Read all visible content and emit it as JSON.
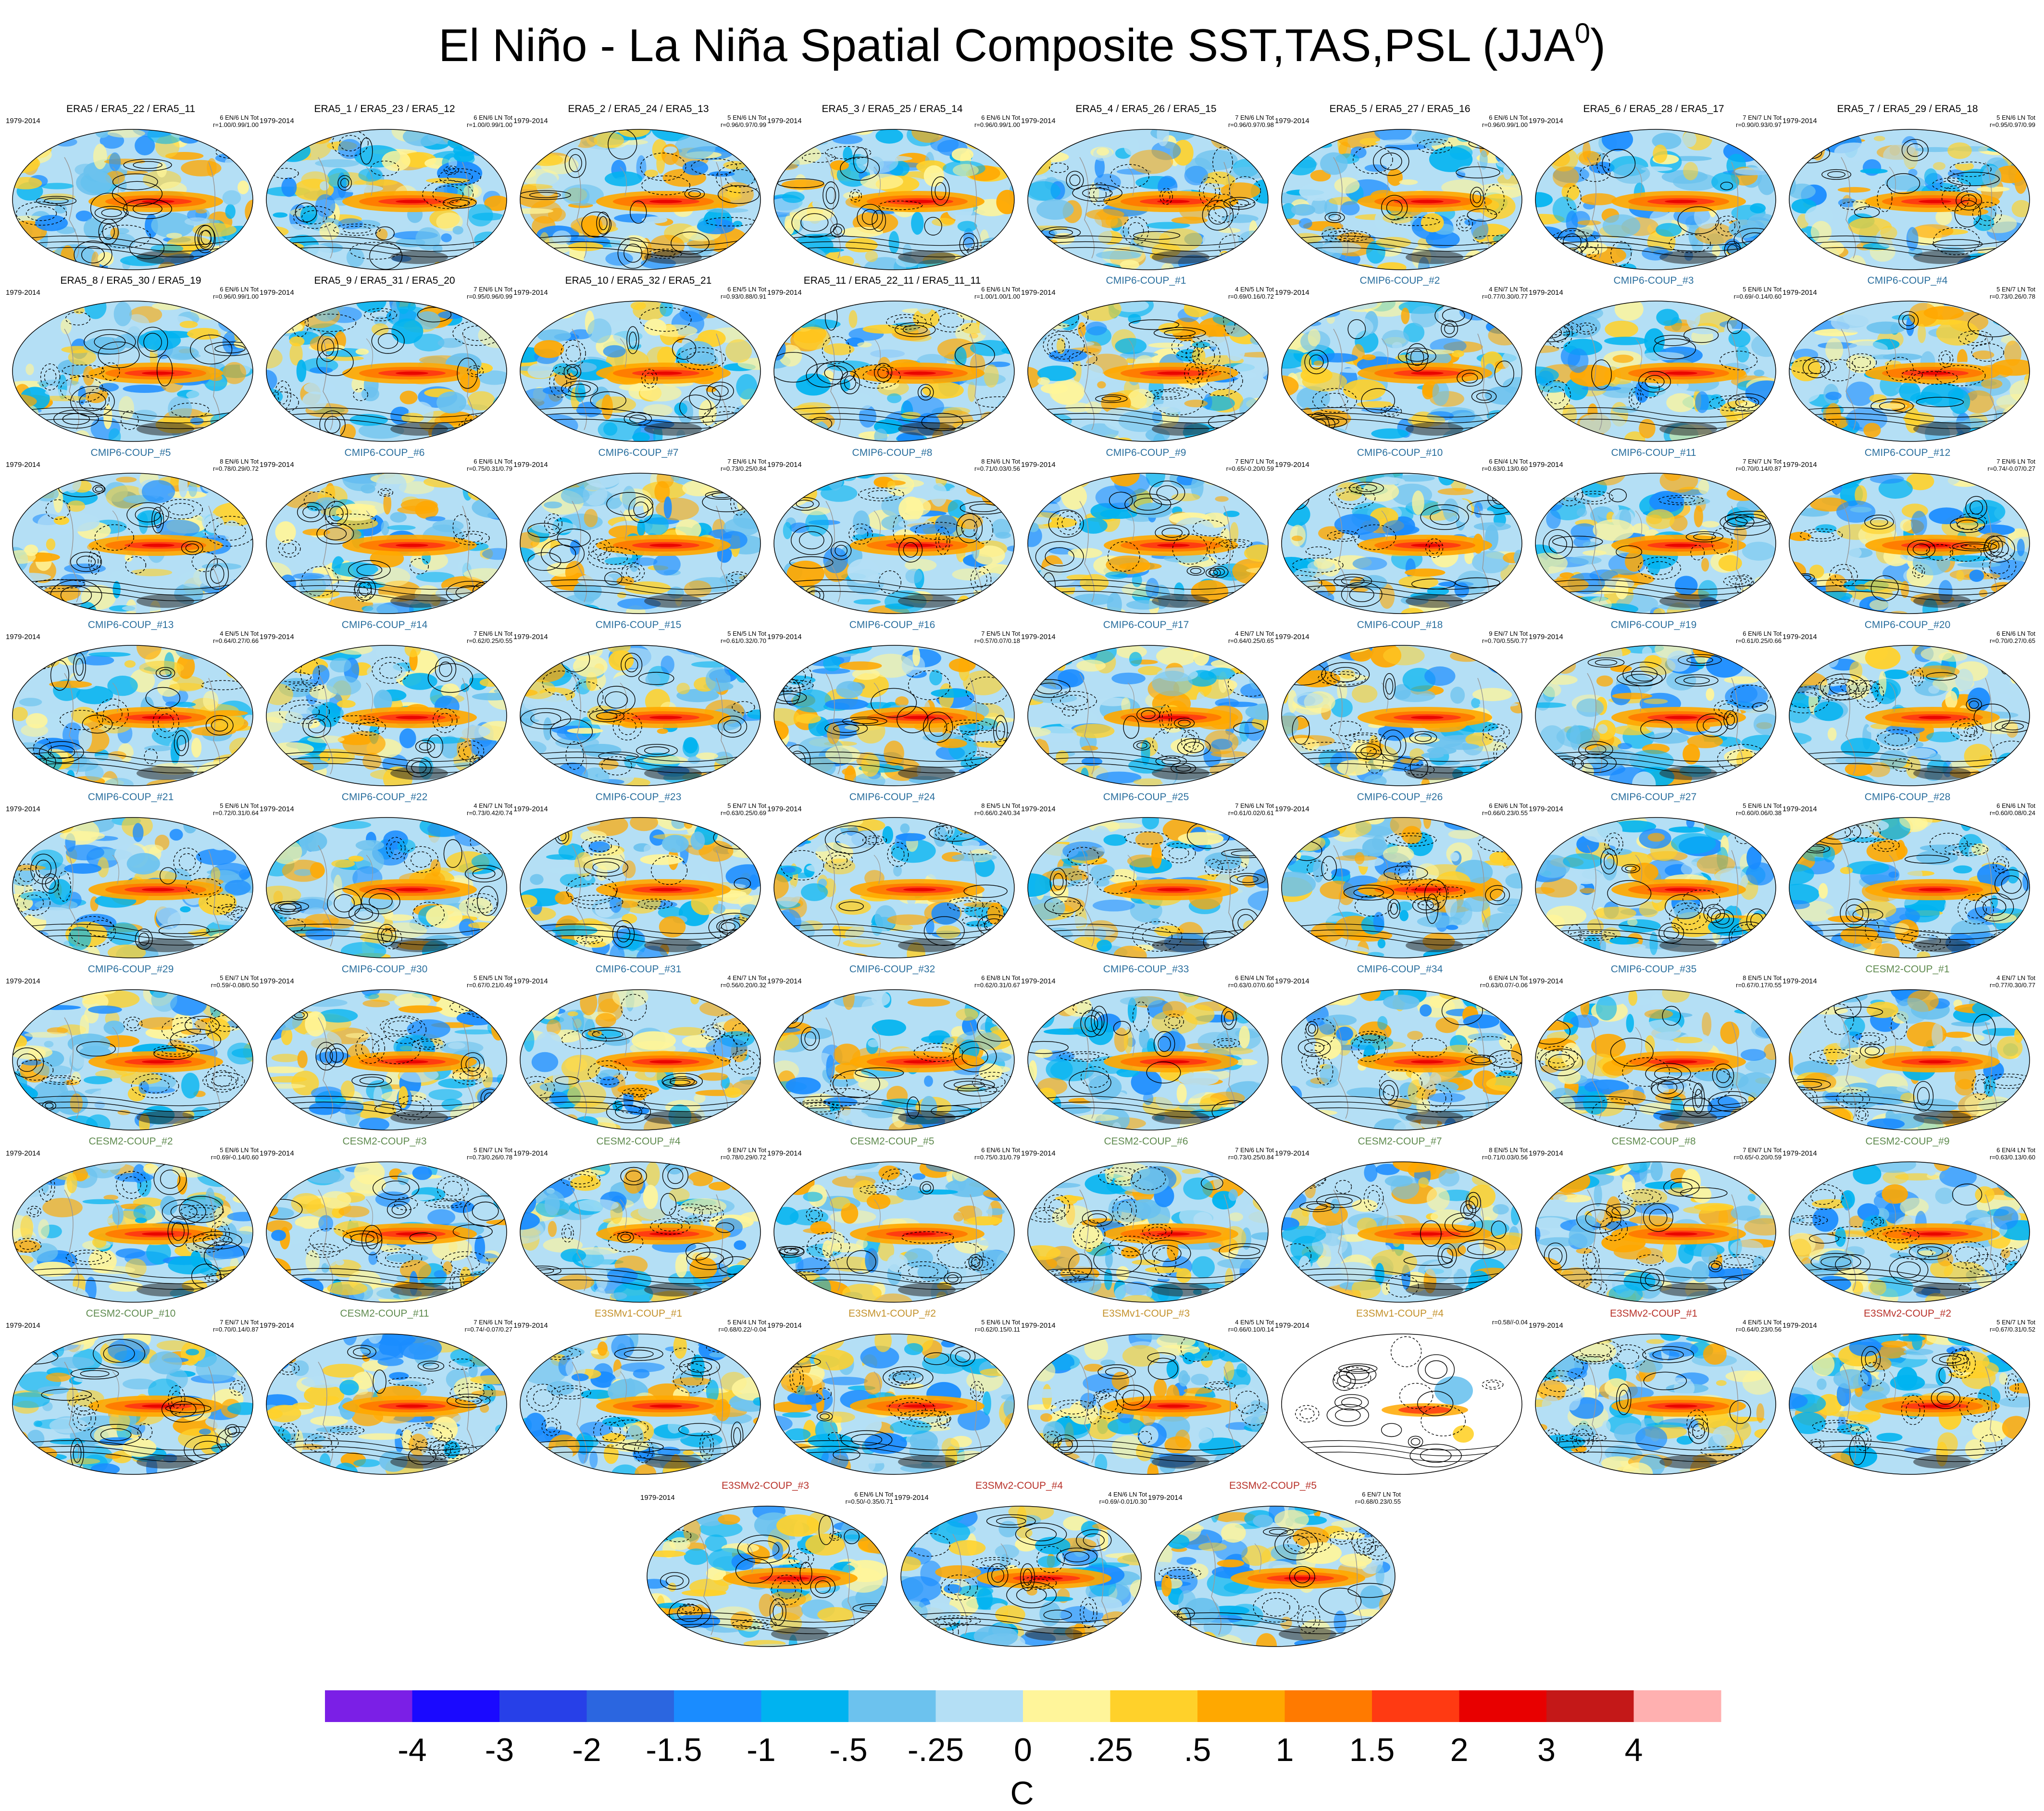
{
  "title_main": "El Niño - La Niña Spatial Composite SST,TAS,PSL (JJA",
  "title_sup": "0",
  "title_close": ")",
  "period": "1979-2014",
  "colors": {
    "ref_title": "#000000",
    "cmip6_title": "#2a6f9e",
    "cesm2_title": "#5f8b4f",
    "e3smv1_title": "#c4922c",
    "e3smv2_title": "#b8322a",
    "coastline": "#999999",
    "contour": "#000000"
  },
  "colorbar": {
    "colors": [
      "#7b1fe6",
      "#1a09ff",
      "#2740e8",
      "#2b66e0",
      "#1a8cff",
      "#00b3f0",
      "#6cc2ee",
      "#b4dff5",
      "#fff59a",
      "#ffd12a",
      "#ffa800",
      "#ff7a00",
      "#ff3a12",
      "#e80000",
      "#c41818",
      "#ffb0b0"
    ],
    "labels": [
      "-4",
      "-3",
      "-2",
      "-1.5",
      "-1",
      "-.5",
      "-.25",
      "0",
      ".25",
      ".5",
      "1",
      "1.5",
      "2",
      "3",
      "4"
    ],
    "units": "C"
  },
  "panels": [
    {
      "title": "ERA5 / ERA5_22 / ERA5_11",
      "group": "ref",
      "stats": [
        "6 EN/6 LN Tot",
        "r=1.00/0.99/1.00"
      ]
    },
    {
      "title": "ERA5_1 / ERA5_23 / ERA5_12",
      "group": "ref",
      "stats": [
        "6 EN/6 LN Tot",
        "r=1.00/0.99/1.00"
      ]
    },
    {
      "title": "ERA5_2 / ERA5_24 / ERA5_13",
      "group": "ref",
      "stats": [
        "5 EN/6 LN Tot",
        "r=0.96/0.97/0.99"
      ]
    },
    {
      "title": "ERA5_3 / ERA5_25 / ERA5_14",
      "group": "ref",
      "stats": [
        "6 EN/6 LN Tot",
        "r=0.96/0.99/1.00"
      ]
    },
    {
      "title": "ERA5_4 / ERA5_26 / ERA5_15",
      "group": "ref",
      "stats": [
        "7 EN/6 LN Tot",
        "r=0.96/0.97/0.98"
      ]
    },
    {
      "title": "ERA5_5 / ERA5_27 / ERA5_16",
      "group": "ref",
      "stats": [
        "6 EN/6 LN Tot",
        "r=0.96/0.99/1.00"
      ]
    },
    {
      "title": "ERA5_6 / ERA5_28 / ERA5_17",
      "group": "ref",
      "stats": [
        "7 EN/7 LN Tot",
        "r=0.90/0.93/0.97"
      ]
    },
    {
      "title": "ERA5_7 / ERA5_29 / ERA5_18",
      "group": "ref",
      "stats": [
        "5 EN/6 LN Tot",
        "r=0.95/0.97/0.99"
      ]
    },
    {
      "title": "ERA5_8 / ERA5_30 / ERA5_19",
      "group": "ref",
      "stats": [
        "6 EN/6 LN Tot",
        "r=0.96/0.99/1.00"
      ]
    },
    {
      "title": "ERA5_9 / ERA5_31 / ERA5_20",
      "group": "ref",
      "stats": [
        "7 EN/6 LN Tot",
        "r=0.95/0.96/0.99"
      ]
    },
    {
      "title": "ERA5_10 / ERA5_32 / ERA5_21",
      "group": "ref",
      "stats": [
        "6 EN/5 LN Tot",
        "r=0.93/0.88/0.91"
      ]
    },
    {
      "title": "ERA5_11 / ERA5_22_11 / ERA5_11_11",
      "group": "ref",
      "stats": [
        "6 EN/6 LN Tot",
        "r=1.00/1.00/1.00"
      ]
    },
    {
      "title": "CMIP6-COUP_#1",
      "group": "cmip6",
      "stats": [
        "4 EN/5 LN Tot",
        "r=0.69/0.16/0.72"
      ]
    },
    {
      "title": "CMIP6-COUP_#2",
      "group": "cmip6",
      "stats": [
        "4 EN/7 LN Tot",
        "r=0.77/0.30/0.77"
      ]
    },
    {
      "title": "CMIP6-COUP_#3",
      "group": "cmip6",
      "stats": [
        "5 EN/6 LN Tot",
        "r=0.69/-0.14/0.60"
      ]
    },
    {
      "title": "CMIP6-COUP_#4",
      "group": "cmip6",
      "stats": [
        "5 EN/7 LN Tot",
        "r=0.73/0.26/0.78"
      ]
    },
    {
      "title": "CMIP6-COUP_#5",
      "group": "cmip6",
      "stats": [
        "8 EN/6 LN Tot",
        "r=0.78/0.29/0.72"
      ]
    },
    {
      "title": "CMIP6-COUP_#6",
      "group": "cmip6",
      "stats": [
        "6 EN/6 LN Tot",
        "r=0.75/0.31/0.79"
      ]
    },
    {
      "title": "CMIP6-COUP_#7",
      "group": "cmip6",
      "stats": [
        "7 EN/6 LN Tot",
        "r=0.73/0.25/0.84"
      ]
    },
    {
      "title": "CMIP6-COUP_#8",
      "group": "cmip6",
      "stats": [
        "8 EN/6 LN Tot",
        "r=0.71/0.03/0.56"
      ]
    },
    {
      "title": "CMIP6-COUP_#9",
      "group": "cmip6",
      "stats": [
        "7 EN/7 LN Tot",
        "r=0.65/-0.20/0.59"
      ]
    },
    {
      "title": "CMIP6-COUP_#10",
      "group": "cmip6",
      "stats": [
        "6 EN/4 LN Tot",
        "r=0.63/0.13/0.60"
      ]
    },
    {
      "title": "CMIP6-COUP_#11",
      "group": "cmip6",
      "stats": [
        "7 EN/7 LN Tot",
        "r=0.70/0.14/0.87"
      ]
    },
    {
      "title": "CMIP6-COUP_#12",
      "group": "cmip6",
      "stats": [
        "7 EN/6 LN Tot",
        "r=0.74/-0.07/0.27"
      ]
    },
    {
      "title": "CMIP6-COUP_#13",
      "group": "cmip6",
      "stats": [
        "4 EN/5 LN Tot",
        "r=0.64/0.27/0.66"
      ]
    },
    {
      "title": "CMIP6-COUP_#14",
      "group": "cmip6",
      "stats": [
        "7 EN/6 LN Tot",
        "r=0.62/0.25/0.55"
      ]
    },
    {
      "title": "CMIP6-COUP_#15",
      "group": "cmip6",
      "stats": [
        "5 EN/5 LN Tot",
        "r=0.61/0.32/0.70"
      ]
    },
    {
      "title": "CMIP6-COUP_#16",
      "group": "cmip6",
      "stats": [
        "7 EN/5 LN Tot",
        "r=0.57/0.07/0.18"
      ]
    },
    {
      "title": "CMIP6-COUP_#17",
      "group": "cmip6",
      "stats": [
        "4 EN/7 LN Tot",
        "r=0.64/0.25/0.65"
      ]
    },
    {
      "title": "CMIP6-COUP_#18",
      "group": "cmip6",
      "stats": [
        "9 EN/7 LN Tot",
        "r=0.70/0.55/0.77"
      ]
    },
    {
      "title": "CMIP6-COUP_#19",
      "group": "cmip6",
      "stats": [
        "6 EN/6 LN Tot",
        "r=0.61/0.25/0.66"
      ]
    },
    {
      "title": "CMIP6-COUP_#20",
      "group": "cmip6",
      "stats": [
        "6 EN/6 LN Tot",
        "r=0.70/0.27/0.65"
      ]
    },
    {
      "title": "CMIP6-COUP_#21",
      "group": "cmip6",
      "stats": [
        "5 EN/6 LN Tot",
        "r=0.72/0.31/0.64"
      ]
    },
    {
      "title": "CMIP6-COUP_#22",
      "group": "cmip6",
      "stats": [
        "4 EN/7 LN Tot",
        "r=0.73/0.42/0.74"
      ]
    },
    {
      "title": "CMIP6-COUP_#23",
      "group": "cmip6",
      "stats": [
        "5 EN/7 LN Tot",
        "r=0.63/0.25/0.69"
      ]
    },
    {
      "title": "CMIP6-COUP_#24",
      "group": "cmip6",
      "stats": [
        "8 EN/5 LN Tot",
        "r=0.66/0.24/0.34"
      ]
    },
    {
      "title": "CMIP6-COUP_#25",
      "group": "cmip6",
      "stats": [
        "7 EN/6 LN Tot",
        "r=0.61/0.02/0.61"
      ]
    },
    {
      "title": "CMIP6-COUP_#26",
      "group": "cmip6",
      "stats": [
        "6 EN/6 LN Tot",
        "r=0.66/0.23/0.55"
      ]
    },
    {
      "title": "CMIP6-COUP_#27",
      "group": "cmip6",
      "stats": [
        "5 EN/6 LN Tot",
        "r=0.60/0.06/0.38"
      ]
    },
    {
      "title": "CMIP6-COUP_#28",
      "group": "cmip6",
      "stats": [
        "6 EN/6 LN Tot",
        "r=0.60/0.08/0.24"
      ]
    },
    {
      "title": "CMIP6-COUP_#29",
      "group": "cmip6",
      "stats": [
        "5 EN/7 LN Tot",
        "r=0.59/-0.08/0.50"
      ]
    },
    {
      "title": "CMIP6-COUP_#30",
      "group": "cmip6",
      "stats": [
        "5 EN/5 LN Tot",
        "r=0.67/0.21/0.49"
      ]
    },
    {
      "title": "CMIP6-COUP_#31",
      "group": "cmip6",
      "stats": [
        "4 EN/7 LN Tot",
        "r=0.56/0.20/0.32"
      ]
    },
    {
      "title": "CMIP6-COUP_#32",
      "group": "cmip6",
      "stats": [
        "6 EN/8 LN Tot",
        "r=0.62/0.31/0.67"
      ]
    },
    {
      "title": "CMIP6-COUP_#33",
      "group": "cmip6",
      "stats": [
        "6 EN/4 LN Tot",
        "r=0.63/0.07/0.60"
      ]
    },
    {
      "title": "CMIP6-COUP_#34",
      "group": "cmip6",
      "stats": [
        "6 EN/4 LN Tot",
        "r=0.63/0.07/-0.06"
      ]
    },
    {
      "title": "CMIP6-COUP_#35",
      "group": "cmip6",
      "stats": [
        "8 EN/5 LN Tot",
        "r=0.67/0.17/0.55"
      ]
    },
    {
      "title": "CESM2-COUP_#1",
      "group": "cesm2",
      "stats": [
        "4 EN/7 LN Tot",
        "r=0.77/0.30/0.77"
      ]
    },
    {
      "title": "CESM2-COUP_#2",
      "group": "cesm2",
      "stats": [
        "5 EN/6 LN Tot",
        "r=0.69/-0.14/0.60"
      ]
    },
    {
      "title": "CESM2-COUP_#3",
      "group": "cesm2",
      "stats": [
        "5 EN/7 LN Tot",
        "r=0.73/0.26/0.78"
      ]
    },
    {
      "title": "CESM2-COUP_#4",
      "group": "cesm2",
      "stats": [
        "9 EN/7 LN Tot",
        "r=0.78/0.29/0.72"
      ]
    },
    {
      "title": "CESM2-COUP_#5",
      "group": "cesm2",
      "stats": [
        "6 EN/6 LN Tot",
        "r=0.75/0.31/0.79"
      ]
    },
    {
      "title": "CESM2-COUP_#6",
      "group": "cesm2",
      "stats": [
        "7 EN/6 LN Tot",
        "r=0.73/0.25/0.84"
      ]
    },
    {
      "title": "CESM2-COUP_#7",
      "group": "cesm2",
      "stats": [
        "8 EN/5 LN Tot",
        "r=0.71/0.03/0.56"
      ]
    },
    {
      "title": "CESM2-COUP_#8",
      "group": "cesm2",
      "stats": [
        "7 EN/7 LN Tot",
        "r=0.65/-0.20/0.59"
      ]
    },
    {
      "title": "CESM2-COUP_#9",
      "group": "cesm2",
      "stats": [
        "6 EN/4 LN Tot",
        "r=0.63/0.13/0.60"
      ]
    },
    {
      "title": "CESM2-COUP_#10",
      "group": "cesm2",
      "stats": [
        "7 EN/7 LN Tot",
        "r=0.70/0.14/0.87"
      ]
    },
    {
      "title": "CESM2-COUP_#11",
      "group": "cesm2",
      "stats": [
        "7 EN/6 LN Tot",
        "r=0.74/-0.07/0.27"
      ]
    },
    {
      "title": "E3SMv1-COUP_#1",
      "group": "e3smv1",
      "stats": [
        "5 EN/4 LN Tot",
        "r=0.68/0.22/-0.04"
      ]
    },
    {
      "title": "E3SMv1-COUP_#2",
      "group": "e3smv1",
      "stats": [
        "5 EN/6 LN Tot",
        "r=0.62/0.15/0.11"
      ]
    },
    {
      "title": "E3SMv1-COUP_#3",
      "group": "e3smv1",
      "stats": [
        "4 EN/5 LN Tot",
        "r=0.66/0.10/0.14"
      ]
    },
    {
      "title": "E3SMv1-COUP_#4",
      "group": "e3smv1",
      "stats": [
        "r=0.58//-0.04"
      ]
    },
    {
      "title": "E3SMv2-COUP_#1",
      "group": "e3smv2",
      "stats": [
        "4 EN/5 LN Tot",
        "r=0.64/0.23/0.56"
      ]
    },
    {
      "title": "E3SMv2-COUP_#2",
      "group": "e3smv2",
      "stats": [
        "5 EN/7 LN Tot",
        "r=0.67/0.31/0.52"
      ]
    },
    {
      "title": "E3SMv2-COUP_#3",
      "group": "e3smv2",
      "stats": [
        "6 EN/6 LN Tot",
        "r=0.50/-0.35/0.71"
      ]
    },
    {
      "title": "E3SMv2-COUP_#4",
      "group": "e3smv2",
      "stats": [
        "4 EN/6 LN Tot",
        "r=0.69/-0.01/0.30"
      ]
    },
    {
      "title": "E3SMv2-COUP_#5",
      "group": "e3smv2",
      "stats": [
        "6 EN/7 LN Tot",
        "r=0.68/0.23/0.55"
      ]
    }
  ]
}
